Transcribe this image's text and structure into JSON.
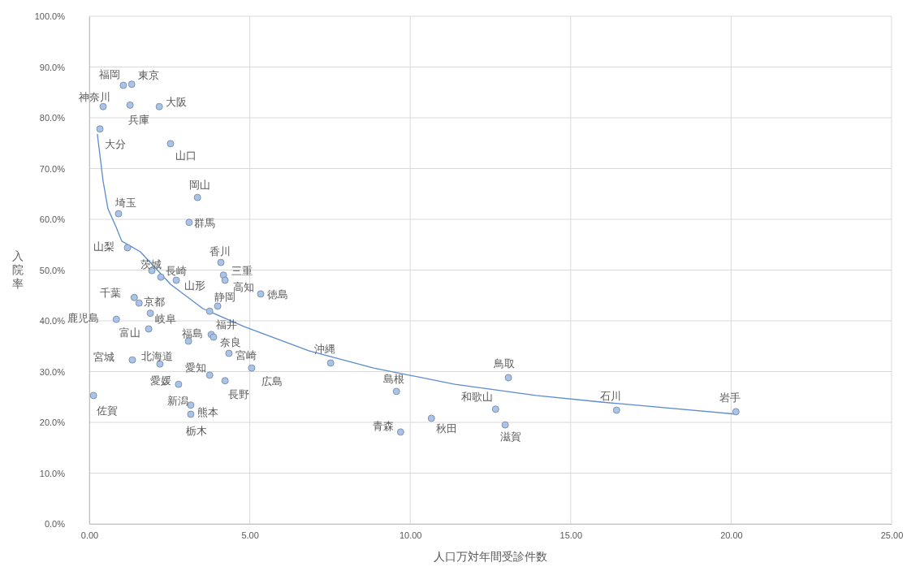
{
  "chart_data": {
    "type": "scatter",
    "xlabel": "人口万対年間受診件数",
    "ylabel": "入院率",
    "grid": true,
    "marker": "circle",
    "xlim": [
      0,
      25
    ],
    "xticks": [
      {
        "value": 0,
        "label": "0.00"
      },
      {
        "value": 5,
        "label": "5.00"
      },
      {
        "value": 10,
        "label": "10.00"
      },
      {
        "value": 15,
        "label": "15.00"
      },
      {
        "value": 20,
        "label": "20.00"
      },
      {
        "value": 25,
        "label": "25.00"
      }
    ],
    "ylim": [
      0,
      100
    ],
    "yticks": [
      {
        "value": 0,
        "label": "0.0%"
      },
      {
        "value": 10,
        "label": "10.0%"
      },
      {
        "value": 20,
        "label": "20.0%"
      },
      {
        "value": 30,
        "label": "30.0%"
      },
      {
        "value": 40,
        "label": "40.0%"
      },
      {
        "value": 50,
        "label": "50.0%"
      },
      {
        "value": 60,
        "label": "60.0%"
      },
      {
        "value": 70,
        "label": "70.0%"
      },
      {
        "value": 80,
        "label": "80.0%"
      },
      {
        "value": 90,
        "label": "90.0%"
      },
      {
        "value": 100,
        "label": "100.0%"
      }
    ],
    "series": [
      {
        "color": "#a9c4e8",
        "x": [
          1.06,
          1.32,
          0.43,
          1.27,
          2.18,
          0.33,
          2.53,
          3.37,
          0.91,
          3.11,
          1.19,
          1.95,
          2.23,
          2.71,
          4.1,
          4.18,
          4.23,
          5.34,
          1.4,
          1.55,
          0.84,
          1.9,
          4.0,
          3.75,
          1.85,
          3.09,
          3.8,
          3.87,
          4.35,
          5.06,
          1.34,
          2.2,
          3.75,
          4.23,
          2.78,
          0.13,
          3.16,
          3.16,
          7.52,
          9.57,
          9.7,
          10.66,
          13.06,
          12.66,
          12.96,
          16.43,
          20.15
        ],
        "values": [
          86.4,
          86.6,
          82.2,
          82.5,
          82.2,
          77.8,
          74.9,
          64.3,
          61.1,
          59.4,
          54.4,
          49.9,
          48.6,
          48.0,
          51.5,
          49.0,
          48.0,
          45.3,
          44.6,
          43.5,
          40.3,
          41.5,
          42.9,
          41.9,
          38.4,
          36.0,
          37.3,
          36.8,
          33.6,
          30.7,
          32.3,
          31.5,
          29.3,
          28.2,
          27.5,
          25.3,
          23.4,
          21.6,
          31.7,
          26.1,
          18.1,
          20.8,
          28.8,
          22.6,
          19.5,
          22.4,
          22.1
        ]
      },
      {
        "type": "line",
        "color": "#5b8bd0",
        "marker": "none",
        "x": [
          0.25,
          0.43,
          0.58,
          0.84,
          1.01,
          1.59,
          2.53,
          3.54,
          4.81,
          6.84,
          8.86,
          11.39,
          13.92,
          15.95,
          20.18
        ],
        "values": [
          76.8,
          67.5,
          62.1,
          58.4,
          55.7,
          53.6,
          47.2,
          42.4,
          38.9,
          34.1,
          30.7,
          27.5,
          25.3,
          24.0,
          21.6
        ]
      }
    ],
    "annotations": [
      {
        "text": "福岡",
        "x": 1.06,
        "y": 86.4
      },
      {
        "text": "東京",
        "x": 1.32,
        "y": 86.6
      },
      {
        "text": "神奈川",
        "x": 0.43,
        "y": 82.2
      },
      {
        "text": "兵庫",
        "x": 1.27,
        "y": 82.5
      },
      {
        "text": "大阪",
        "x": 2.18,
        "y": 82.2
      },
      {
        "text": "大分",
        "x": 0.33,
        "y": 77.8
      },
      {
        "text": "山口",
        "x": 2.53,
        "y": 74.9
      },
      {
        "text": "岡山",
        "x": 3.37,
        "y": 64.3
      },
      {
        "text": "埼玉",
        "x": 0.91,
        "y": 61.1
      },
      {
        "text": "群馬",
        "x": 3.11,
        "y": 59.4
      },
      {
        "text": "山梨",
        "x": 1.19,
        "y": 54.4
      },
      {
        "text": "茨城",
        "x": 1.95,
        "y": 49.9
      },
      {
        "text": "長崎",
        "x": 2.23,
        "y": 48.6
      },
      {
        "text": "山形",
        "x": 2.71,
        "y": 48.0
      },
      {
        "text": "香川",
        "x": 4.1,
        "y": 51.5
      },
      {
        "text": "三重",
        "x": 4.18,
        "y": 49.0
      },
      {
        "text": "高知",
        "x": 4.23,
        "y": 48.0
      },
      {
        "text": "徳島",
        "x": 5.34,
        "y": 45.3
      },
      {
        "text": "千葉",
        "x": 1.4,
        "y": 44.6
      },
      {
        "text": "京都",
        "x": 1.55,
        "y": 43.5
      },
      {
        "text": "鹿児島",
        "x": 0.84,
        "y": 40.3
      },
      {
        "text": "岐阜",
        "x": 1.9,
        "y": 41.5
      },
      {
        "text": "静岡",
        "x": 4.0,
        "y": 42.9
      },
      {
        "text": "福井",
        "x": 3.75,
        "y": 41.9
      },
      {
        "text": "富山",
        "x": 1.85,
        "y": 38.4
      },
      {
        "text": "北海道",
        "x": 3.09,
        "y": 36.0
      },
      {
        "text": "福島",
        "x": 3.8,
        "y": 37.3
      },
      {
        "text": "奈良",
        "x": 3.87,
        "y": 36.8
      },
      {
        "text": "宮崎",
        "x": 4.35,
        "y": 33.6
      },
      {
        "text": "広島",
        "x": 5.06,
        "y": 30.7
      },
      {
        "text": "宮城",
        "x": 1.34,
        "y": 32.3
      },
      {
        "text": "愛媛",
        "x": 2.2,
        "y": 31.5
      },
      {
        "text": "愛知",
        "x": 3.75,
        "y": 29.3
      },
      {
        "text": "長野",
        "x": 4.23,
        "y": 28.2
      },
      {
        "text": "新潟",
        "x": 2.78,
        "y": 27.5
      },
      {
        "text": "佐賀",
        "x": 0.13,
        "y": 25.3
      },
      {
        "text": "熊本",
        "x": 3.16,
        "y": 23.4
      },
      {
        "text": "栃木",
        "x": 3.16,
        "y": 21.6
      },
      {
        "text": "沖縄",
        "x": 7.52,
        "y": 31.7
      },
      {
        "text": "島根",
        "x": 9.57,
        "y": 26.1
      },
      {
        "text": "青森",
        "x": 9.7,
        "y": 18.1
      },
      {
        "text": "秋田",
        "x": 10.66,
        "y": 20.8
      },
      {
        "text": "鳥取",
        "x": 13.06,
        "y": 28.8
      },
      {
        "text": "和歌山",
        "x": 12.66,
        "y": 22.6
      },
      {
        "text": "滋賀",
        "x": 12.96,
        "y": 19.5
      },
      {
        "text": "石川",
        "x": 16.43,
        "y": 22.4
      },
      {
        "text": "岩手",
        "x": 20.15,
        "y": 22.1
      }
    ]
  }
}
